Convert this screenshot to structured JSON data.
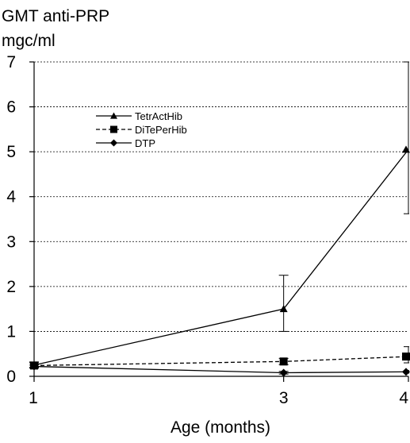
{
  "chart_data": {
    "type": "line",
    "ylabel_lines": [
      "GMT anti-PRP",
      "mgc/ml"
    ],
    "xlabel": "Age (months)",
    "x": [
      1,
      3,
      4
    ],
    "x_tick_labels": [
      "1",
      "3",
      "4"
    ],
    "y_ticks": [
      0,
      1,
      2,
      3,
      4,
      5,
      6,
      7
    ],
    "y_tick_labels": [
      "0",
      "1",
      "2",
      "3",
      "4",
      "5",
      "6",
      "7"
    ],
    "ylim": [
      0,
      7
    ],
    "grid": "horizontal dashed",
    "legend_position": "top-left",
    "series": [
      {
        "name": "TetrActHib",
        "marker": "triangle",
        "line_style": "solid",
        "values": [
          0.25,
          1.5,
          5.05
        ],
        "error_low": [
          0.2,
          1.0,
          3.62
        ],
        "error_high": [
          0.32,
          2.25,
          7.0
        ]
      },
      {
        "name": "DiTePerHib",
        "marker": "square",
        "line_style": "dashed",
        "values": [
          0.24,
          0.33,
          0.44
        ],
        "error_low": [
          0.18,
          0.26,
          0.3
        ],
        "error_high": [
          0.3,
          0.4,
          0.66
        ]
      },
      {
        "name": "DTP",
        "marker": "diamond",
        "line_style": "solid",
        "values": [
          0.22,
          0.08,
          0.1
        ],
        "error_low": [
          0.2,
          0.05,
          0.07
        ],
        "error_high": [
          0.25,
          0.11,
          0.13
        ]
      }
    ]
  }
}
